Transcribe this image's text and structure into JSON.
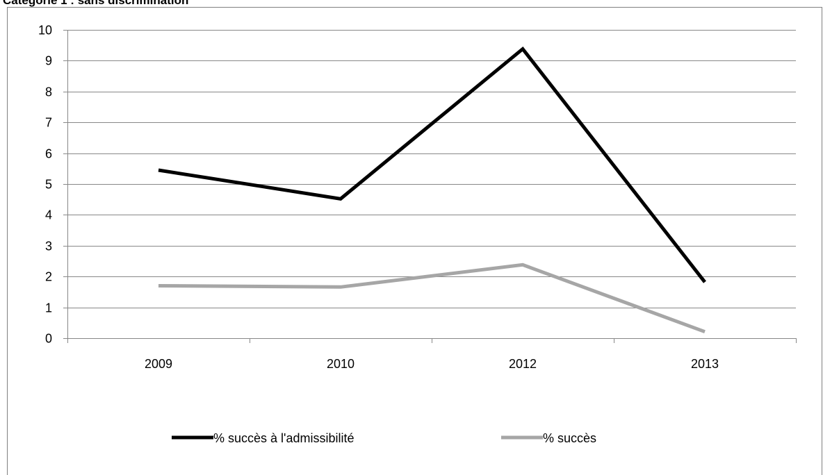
{
  "chart_data": {
    "type": "line",
    "title": "Catégorie 1 : sans discrimination",
    "categories": [
      "2009",
      "2010",
      "2012",
      "2013"
    ],
    "ylim": [
      0,
      10
    ],
    "yticks": [
      0,
      1,
      2,
      3,
      4,
      5,
      6,
      7,
      8,
      9,
      10
    ],
    "grid": true,
    "legend_position": "bottom",
    "series": [
      {
        "name": "% succès à l'admissibilité",
        "color": "#000000",
        "values": [
          5.45,
          4.52,
          9.38,
          1.82
        ]
      },
      {
        "name": "% succès",
        "color": "#a6a6a6",
        "values": [
          1.7,
          1.66,
          2.38,
          0.21
        ]
      }
    ]
  }
}
